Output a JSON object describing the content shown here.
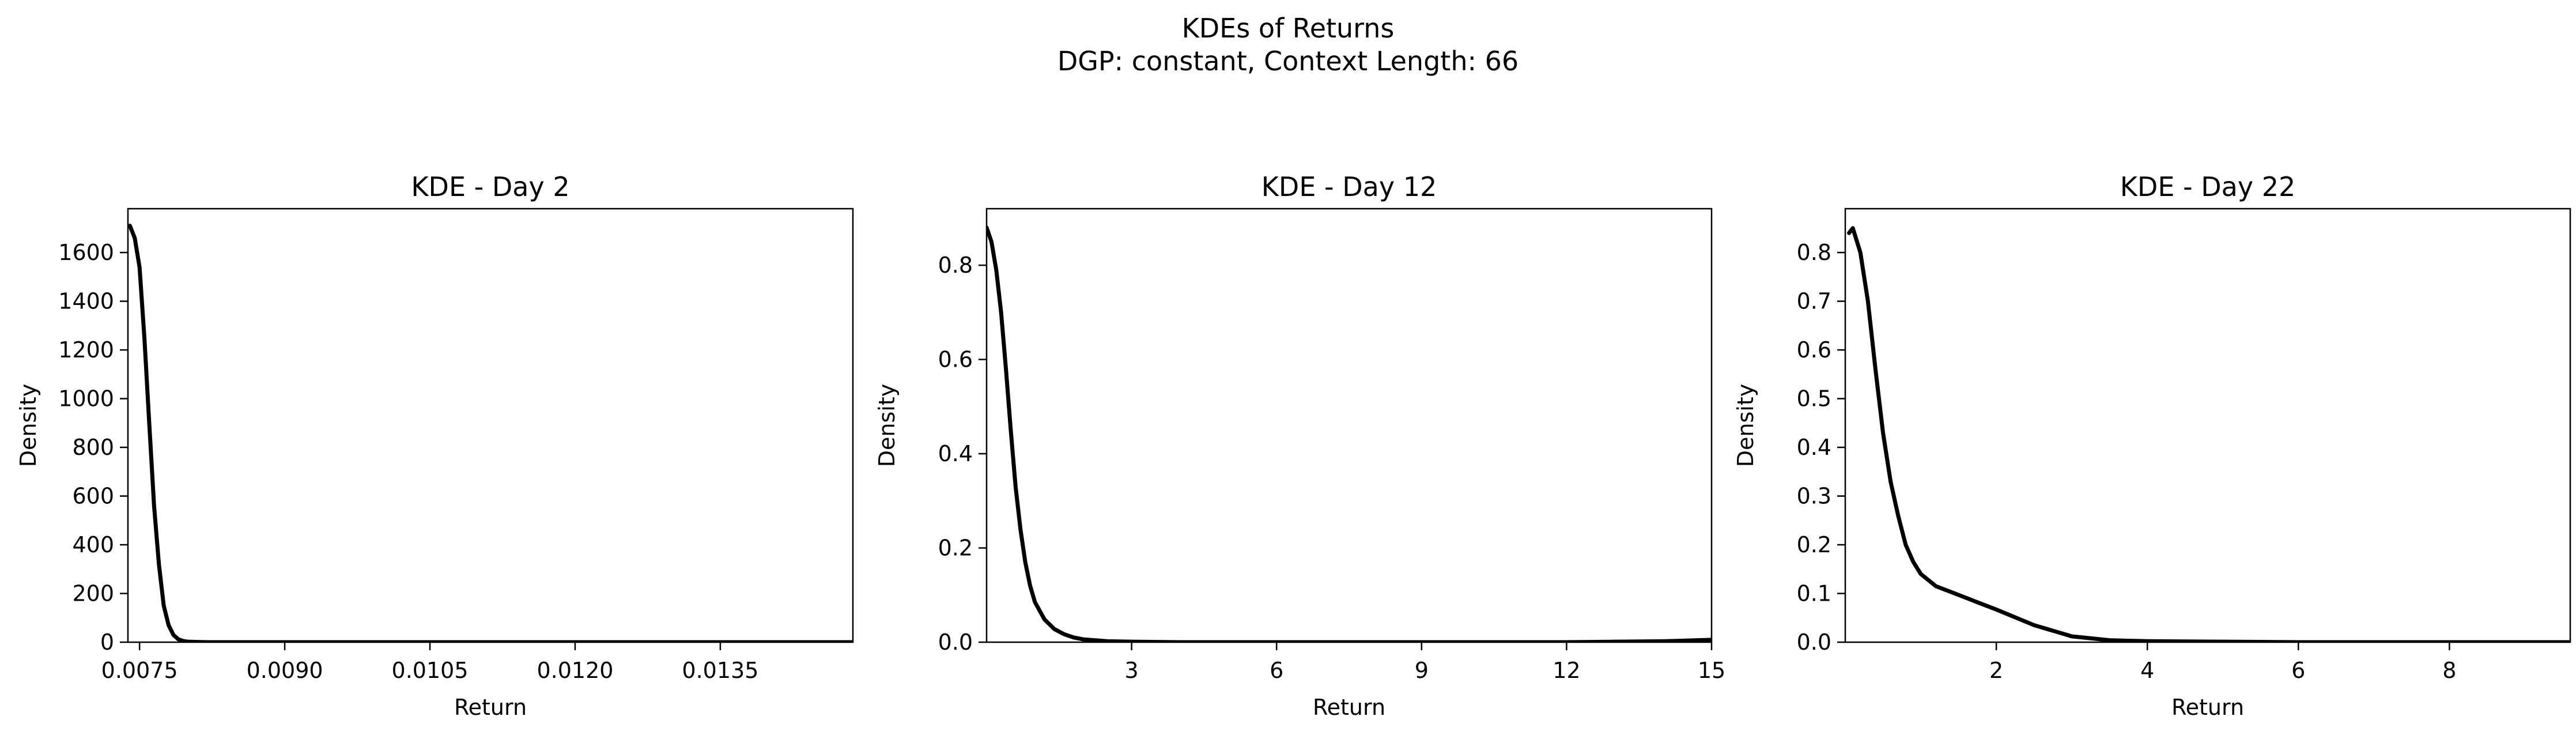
{
  "figure": {
    "title_line1": "KDEs of Returns",
    "title_line2": "DGP: constant, Context Length: 66"
  },
  "chart_data": [
    {
      "type": "line",
      "title": "KDE - Day 2",
      "xlabel": "Return",
      "ylabel": "Density",
      "xlim": [
        0.00738,
        0.01487
      ],
      "ylim": [
        0,
        1780
      ],
      "xticks": [
        0.0075,
        0.009,
        0.0105,
        0.012,
        0.0135
      ],
      "xtick_labels": [
        "0.0075",
        "0.0090",
        "0.0105",
        "0.0120",
        "0.0135"
      ],
      "yticks": [
        0,
        200,
        400,
        600,
        800,
        1000,
        1200,
        1400,
        1600
      ],
      "ytick_labels": [
        "0",
        "200",
        "400",
        "600",
        "800",
        "1000",
        "1200",
        "1400",
        "1600"
      ],
      "line_color": "#000000",
      "series": [
        {
          "x": [
            0.0074,
            0.00745,
            0.0075,
            0.00755,
            0.0076,
            0.00765,
            0.0077,
            0.00775,
            0.0078,
            0.00785,
            0.0079,
            0.00795,
            0.008,
            0.0081,
            0.0082,
            0.0084,
            0.009,
            0.01,
            0.011,
            0.012,
            0.013,
            0.014,
            0.01487
          ],
          "y": [
            1710,
            1660,
            1540,
            1250,
            900,
            560,
            320,
            150,
            70,
            30,
            12,
            5,
            2,
            1,
            0,
            0,
            0,
            0,
            0,
            0,
            0,
            0,
            0
          ]
        }
      ]
    },
    {
      "type": "line",
      "title": "KDE - Day 12",
      "xlabel": "Return",
      "ylabel": "Density",
      "xlim": [
        0.0,
        15.0
      ],
      "ylim": [
        0,
        0.92
      ],
      "xticks": [
        3,
        6,
        9,
        12,
        15
      ],
      "xtick_labels": [
        "3",
        "6",
        "9",
        "12",
        "15"
      ],
      "yticks": [
        0.0,
        0.2,
        0.4,
        0.6,
        0.8
      ],
      "ytick_labels": [
        "0.0",
        "0.2",
        "0.4",
        "0.6",
        "0.8"
      ],
      "line_color": "#000000",
      "series": [
        {
          "x": [
            0.0,
            0.1,
            0.2,
            0.3,
            0.4,
            0.5,
            0.6,
            0.7,
            0.8,
            0.9,
            1.0,
            1.2,
            1.4,
            1.6,
            1.8,
            2.0,
            2.5,
            3.0,
            4.0,
            6.0,
            9.0,
            12.0,
            14.0,
            15.0
          ],
          "y": [
            0.88,
            0.85,
            0.79,
            0.7,
            0.58,
            0.45,
            0.33,
            0.24,
            0.17,
            0.12,
            0.085,
            0.048,
            0.028,
            0.017,
            0.01,
            0.006,
            0.002,
            0.001,
            0.0,
            0.0,
            0.0,
            0.0,
            0.002,
            0.005
          ]
        }
      ]
    },
    {
      "type": "line",
      "title": "KDE - Day 22",
      "xlabel": "Return",
      "ylabel": "Density",
      "xlim": [
        0.0,
        9.6
      ],
      "ylim": [
        0,
        0.89
      ],
      "xticks": [
        2,
        4,
        6,
        8
      ],
      "xtick_labels": [
        "2",
        "4",
        "6",
        "8"
      ],
      "yticks": [
        0.0,
        0.1,
        0.2,
        0.3,
        0.4,
        0.5,
        0.6,
        0.7,
        0.8
      ],
      "ytick_labels": [
        "0.0",
        "0.1",
        "0.2",
        "0.3",
        "0.4",
        "0.5",
        "0.6",
        "0.7",
        "0.8"
      ],
      "line_color": "#000000",
      "series": [
        {
          "x": [
            0.05,
            0.1,
            0.2,
            0.3,
            0.4,
            0.5,
            0.6,
            0.7,
            0.8,
            0.9,
            1.0,
            1.2,
            1.5,
            2.0,
            2.5,
            3.0,
            3.5,
            4.0,
            5.0,
            6.0,
            8.0,
            9.6
          ],
          "y": [
            0.84,
            0.85,
            0.8,
            0.7,
            0.56,
            0.43,
            0.33,
            0.26,
            0.2,
            0.165,
            0.14,
            0.115,
            0.097,
            0.067,
            0.035,
            0.012,
            0.004,
            0.002,
            0.001,
            0.0,
            0.0,
            0.0
          ]
        }
      ]
    }
  ]
}
